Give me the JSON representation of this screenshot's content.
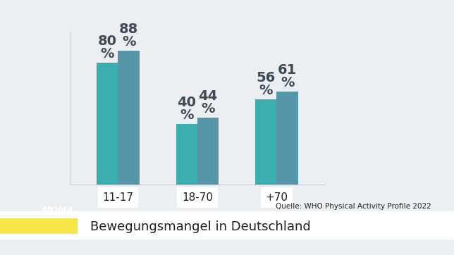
{
  "chart_data": {
    "type": "bar",
    "title": "Bewegungsmangel in Deutschland",
    "source": "Quelle: WHO Physical Activity Profile 2022",
    "logo": "MOMA",
    "categories": [
      "11-17",
      "18-70",
      "+70"
    ],
    "series": [
      {
        "color": "#3aaeb0",
        "values": [
          80,
          40,
          56
        ],
        "value_labels": [
          "80\n%",
          "40\n%",
          "56\n%"
        ]
      },
      {
        "color": "#5796aa",
        "values": [
          88,
          44,
          61
        ],
        "value_labels": [
          "88\n%",
          "44\n%",
          "61\n%"
        ]
      }
    ],
    "ylim": [
      0,
      100
    ],
    "yticks": [],
    "data_labels": true,
    "tick_labels": "x",
    "grid": false
  }
}
